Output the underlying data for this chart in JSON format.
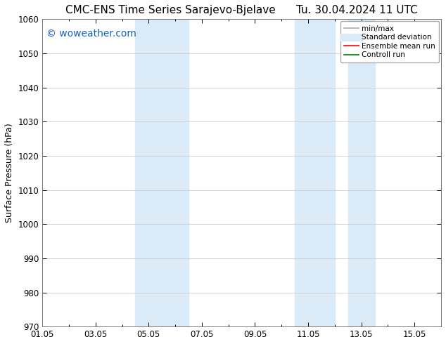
{
  "title_left": "CMC-ENS Time Series Sarajevo-Bjelave",
  "title_right": "Tu. 30.04.2024 11 UTC",
  "ylabel": "Surface Pressure (hPa)",
  "ylim": [
    970,
    1060
  ],
  "yticks": [
    970,
    980,
    990,
    1000,
    1010,
    1020,
    1030,
    1040,
    1050,
    1060
  ],
  "x_min": 0,
  "x_max": 15,
  "xtick_positions": [
    0,
    2,
    4,
    6,
    8,
    10,
    12,
    14
  ],
  "xtick_labels": [
    "01.05",
    "03.05",
    "05.05",
    "07.05",
    "09.05",
    "11.05",
    "13.05",
    "15.05"
  ],
  "minor_xtick_positions": [
    1,
    3,
    5,
    7,
    9,
    11,
    13
  ],
  "shaded_bands": [
    {
      "x_start": 3.5,
      "x_end": 5.5
    },
    {
      "x_start": 9.5,
      "x_end": 11.0
    },
    {
      "x_start": 11.5,
      "x_end": 12.5
    }
  ],
  "shade_color": "#daeaf7",
  "watermark": "© woweather.com",
  "watermark_color": "#1565C0",
  "watermark_fontsize": 10,
  "legend_items": [
    {
      "label": "min/max",
      "color": "#aaaaaa",
      "lw": 1.2,
      "style": "solid"
    },
    {
      "label": "Standard deviation",
      "color": "#c8daea",
      "lw": 7,
      "style": "solid"
    },
    {
      "label": "Ensemble mean run",
      "color": "red",
      "lw": 1.2,
      "style": "solid"
    },
    {
      "label": "Controll run",
      "color": "green",
      "lw": 1.2,
      "style": "solid"
    }
  ],
  "bg_color": "#ffffff",
  "grid_color": "#cccccc",
  "title_fontsize": 11,
  "axis_fontsize": 9,
  "tick_fontsize": 8.5
}
